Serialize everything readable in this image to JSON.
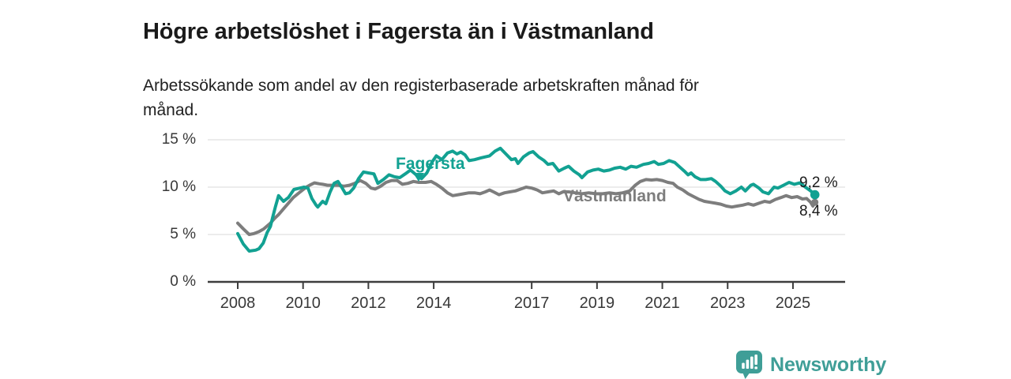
{
  "header": {
    "title": "Högre arbetslöshet i Fagersta än i Västmanland",
    "subtitle": "Arbetssökande som andel av den registerbaserade arbetskraften månad för månad."
  },
  "chart_data": {
    "type": "line",
    "title": "Högre arbetslöshet i Fagersta än i Västmanland",
    "unit": "%",
    "ylim": [
      0,
      15
    ],
    "x_range": [
      2008,
      2025.75
    ],
    "grid": "horizontal",
    "y_ticks": [
      {
        "value": 0,
        "label": "0 %"
      },
      {
        "value": 5,
        "label": "5 %"
      },
      {
        "value": 10,
        "label": "10 %"
      },
      {
        "value": 15,
        "label": "15 %"
      }
    ],
    "x_ticks": [
      {
        "value": 2008,
        "label": "2008"
      },
      {
        "value": 2010,
        "label": "2010"
      },
      {
        "value": 2012,
        "label": "2012"
      },
      {
        "value": 2014,
        "label": "2014"
      },
      {
        "value": 2017,
        "label": "2017"
      },
      {
        "value": 2019,
        "label": "2019"
      },
      {
        "value": 2021,
        "label": "2021"
      },
      {
        "value": 2023,
        "label": "2023"
      },
      {
        "value": 2025,
        "label": "2025"
      }
    ],
    "series": [
      {
        "name": "Fagersta",
        "label": "Fagersta",
        "color": "#12a192",
        "end_label": "9,2 %",
        "last_value": 9.2,
        "points": [
          [
            2008.0,
            5.1
          ],
          [
            2008.17,
            4.0
          ],
          [
            2008.35,
            3.25
          ],
          [
            2008.55,
            3.35
          ],
          [
            2008.65,
            3.5
          ],
          [
            2008.78,
            4.1
          ],
          [
            2008.9,
            5.2
          ],
          [
            2009.0,
            5.85
          ],
          [
            2009.07,
            6.8
          ],
          [
            2009.15,
            7.9
          ],
          [
            2009.25,
            9.1
          ],
          [
            2009.4,
            8.5
          ],
          [
            2009.55,
            8.9
          ],
          [
            2009.72,
            9.75
          ],
          [
            2009.9,
            9.9
          ],
          [
            2010.03,
            10.0
          ],
          [
            2010.15,
            9.9
          ],
          [
            2010.27,
            8.8
          ],
          [
            2010.4,
            8.1
          ],
          [
            2010.45,
            7.9
          ],
          [
            2010.6,
            8.5
          ],
          [
            2010.7,
            8.25
          ],
          [
            2010.83,
            9.5
          ],
          [
            2010.95,
            10.4
          ],
          [
            2011.07,
            10.6
          ],
          [
            2011.2,
            9.9
          ],
          [
            2011.3,
            9.3
          ],
          [
            2011.42,
            9.4
          ],
          [
            2011.55,
            9.9
          ],
          [
            2011.7,
            10.9
          ],
          [
            2011.85,
            11.6
          ],
          [
            2012.0,
            11.5
          ],
          [
            2012.17,
            11.4
          ],
          [
            2012.29,
            10.4
          ],
          [
            2012.46,
            10.8
          ],
          [
            2012.63,
            11.3
          ],
          [
            2012.79,
            11.1
          ],
          [
            2012.96,
            11.0
          ],
          [
            2013.13,
            11.4
          ],
          [
            2013.29,
            11.8
          ],
          [
            2013.46,
            11.3
          ],
          [
            2013.63,
            10.9
          ],
          [
            2013.79,
            11.5
          ],
          [
            2013.96,
            12.7
          ],
          [
            2014.08,
            13.3
          ],
          [
            2014.25,
            12.9
          ],
          [
            2014.42,
            13.6
          ],
          [
            2014.58,
            13.8
          ],
          [
            2014.71,
            13.5
          ],
          [
            2014.83,
            13.7
          ],
          [
            2014.96,
            13.4
          ],
          [
            2015.08,
            12.8
          ],
          [
            2015.25,
            12.9
          ],
          [
            2015.46,
            13.1
          ],
          [
            2015.71,
            13.3
          ],
          [
            2015.88,
            13.8
          ],
          [
            2016.04,
            14.1
          ],
          [
            2016.21,
            13.5
          ],
          [
            2016.38,
            12.9
          ],
          [
            2016.5,
            13.0
          ],
          [
            2016.58,
            12.5
          ],
          [
            2016.75,
            13.2
          ],
          [
            2016.92,
            13.6
          ],
          [
            2017.04,
            13.75
          ],
          [
            2017.21,
            13.2
          ],
          [
            2017.38,
            12.8
          ],
          [
            2017.5,
            12.4
          ],
          [
            2017.65,
            12.5
          ],
          [
            2017.83,
            11.7
          ],
          [
            2018.0,
            12.0
          ],
          [
            2018.13,
            12.2
          ],
          [
            2018.29,
            11.7
          ],
          [
            2018.46,
            11.3
          ],
          [
            2018.54,
            11.0
          ],
          [
            2018.71,
            11.6
          ],
          [
            2018.88,
            11.8
          ],
          [
            2019.04,
            11.9
          ],
          [
            2019.21,
            11.7
          ],
          [
            2019.38,
            11.8
          ],
          [
            2019.54,
            12.0
          ],
          [
            2019.71,
            12.1
          ],
          [
            2019.88,
            11.9
          ],
          [
            2020.04,
            12.2
          ],
          [
            2020.21,
            12.1
          ],
          [
            2020.42,
            12.4
          ],
          [
            2020.58,
            12.5
          ],
          [
            2020.75,
            12.7
          ],
          [
            2020.88,
            12.4
          ],
          [
            2021.04,
            12.5
          ],
          [
            2021.21,
            12.8
          ],
          [
            2021.38,
            12.6
          ],
          [
            2021.54,
            12.1
          ],
          [
            2021.67,
            11.7
          ],
          [
            2021.79,
            11.3
          ],
          [
            2021.88,
            11.5
          ],
          [
            2022.0,
            11.1
          ],
          [
            2022.17,
            10.8
          ],
          [
            2022.33,
            10.8
          ],
          [
            2022.5,
            10.9
          ],
          [
            2022.63,
            10.6
          ],
          [
            2022.79,
            10.1
          ],
          [
            2022.92,
            9.6
          ],
          [
            2023.08,
            9.3
          ],
          [
            2023.25,
            9.6
          ],
          [
            2023.42,
            10.0
          ],
          [
            2023.54,
            9.6
          ],
          [
            2023.71,
            10.2
          ],
          [
            2023.79,
            10.3
          ],
          [
            2023.96,
            9.9
          ],
          [
            2024.08,
            9.5
          ],
          [
            2024.25,
            9.3
          ],
          [
            2024.42,
            10.0
          ],
          [
            2024.54,
            9.9
          ],
          [
            2024.71,
            10.2
          ],
          [
            2024.88,
            10.5
          ],
          [
            2025.04,
            10.3
          ],
          [
            2025.21,
            10.45
          ],
          [
            2025.38,
            10.0
          ],
          [
            2025.54,
            9.6
          ],
          [
            2025.67,
            9.2
          ]
        ]
      },
      {
        "name": "Västmanland",
        "label": "Västmanland",
        "color": "#7d7d7d",
        "end_label": "8,4 %",
        "last_value": 8.4,
        "points": [
          [
            2008.0,
            6.2
          ],
          [
            2008.17,
            5.6
          ],
          [
            2008.35,
            5.0
          ],
          [
            2008.5,
            5.1
          ],
          [
            2008.65,
            5.3
          ],
          [
            2008.8,
            5.6
          ],
          [
            2009.0,
            6.2
          ],
          [
            2009.13,
            6.7
          ],
          [
            2009.25,
            7.1
          ],
          [
            2009.4,
            7.7
          ],
          [
            2009.5,
            8.1
          ],
          [
            2009.7,
            8.9
          ],
          [
            2009.95,
            9.6
          ],
          [
            2010.1,
            10.0
          ],
          [
            2010.2,
            10.2
          ],
          [
            2010.35,
            10.45
          ],
          [
            2010.5,
            10.35
          ],
          [
            2010.6,
            10.3
          ],
          [
            2010.75,
            10.2
          ],
          [
            2010.92,
            10.2
          ],
          [
            2011.08,
            10.2
          ],
          [
            2011.25,
            10.1
          ],
          [
            2011.42,
            10.2
          ],
          [
            2011.58,
            10.4
          ],
          [
            2011.75,
            10.7
          ],
          [
            2011.92,
            10.4
          ],
          [
            2012.08,
            9.9
          ],
          [
            2012.21,
            9.8
          ],
          [
            2012.38,
            10.1
          ],
          [
            2012.54,
            10.5
          ],
          [
            2012.71,
            10.7
          ],
          [
            2012.88,
            10.7
          ],
          [
            2013.04,
            10.3
          ],
          [
            2013.21,
            10.4
          ],
          [
            2013.38,
            10.6
          ],
          [
            2013.54,
            10.5
          ],
          [
            2013.75,
            10.5
          ],
          [
            2013.92,
            10.6
          ],
          [
            2014.08,
            10.3
          ],
          [
            2014.25,
            9.9
          ],
          [
            2014.42,
            9.4
          ],
          [
            2014.58,
            9.1
          ],
          [
            2014.75,
            9.2
          ],
          [
            2014.92,
            9.3
          ],
          [
            2015.08,
            9.4
          ],
          [
            2015.25,
            9.4
          ],
          [
            2015.42,
            9.3
          ],
          [
            2015.58,
            9.5
          ],
          [
            2015.71,
            9.7
          ],
          [
            2015.83,
            9.5
          ],
          [
            2016.0,
            9.2
          ],
          [
            2016.17,
            9.4
          ],
          [
            2016.33,
            9.5
          ],
          [
            2016.5,
            9.6
          ],
          [
            2016.67,
            9.8
          ],
          [
            2016.83,
            10.0
          ],
          [
            2017.0,
            9.9
          ],
          [
            2017.17,
            9.7
          ],
          [
            2017.33,
            9.4
          ],
          [
            2017.5,
            9.5
          ],
          [
            2017.67,
            9.6
          ],
          [
            2017.83,
            9.3
          ],
          [
            2017.96,
            9.5
          ],
          [
            2018.13,
            9.5
          ],
          [
            2018.33,
            9.4
          ],
          [
            2018.54,
            9.3
          ],
          [
            2018.75,
            9.4
          ],
          [
            2018.96,
            9.3
          ],
          [
            2019.17,
            9.3
          ],
          [
            2019.38,
            9.4
          ],
          [
            2019.58,
            9.3
          ],
          [
            2019.79,
            9.4
          ],
          [
            2020.0,
            9.6
          ],
          [
            2020.17,
            10.2
          ],
          [
            2020.33,
            10.6
          ],
          [
            2020.5,
            10.8
          ],
          [
            2020.67,
            10.75
          ],
          [
            2020.83,
            10.8
          ],
          [
            2021.0,
            10.7
          ],
          [
            2021.17,
            10.5
          ],
          [
            2021.33,
            10.4
          ],
          [
            2021.46,
            10.0
          ],
          [
            2021.63,
            9.7
          ],
          [
            2021.79,
            9.3
          ],
          [
            2021.96,
            9.0
          ],
          [
            2022.13,
            8.7
          ],
          [
            2022.29,
            8.5
          ],
          [
            2022.46,
            8.4
          ],
          [
            2022.63,
            8.3
          ],
          [
            2022.79,
            8.2
          ],
          [
            2022.96,
            8.0
          ],
          [
            2023.13,
            7.9
          ],
          [
            2023.29,
            8.0
          ],
          [
            2023.46,
            8.1
          ],
          [
            2023.63,
            8.25
          ],
          [
            2023.79,
            8.1
          ],
          [
            2023.96,
            8.3
          ],
          [
            2024.13,
            8.5
          ],
          [
            2024.29,
            8.4
          ],
          [
            2024.46,
            8.7
          ],
          [
            2024.63,
            8.9
          ],
          [
            2024.79,
            9.1
          ],
          [
            2024.96,
            8.9
          ],
          [
            2025.13,
            9.0
          ],
          [
            2025.29,
            8.75
          ],
          [
            2025.42,
            8.8
          ],
          [
            2025.54,
            8.4
          ],
          [
            2025.61,
            8.0
          ],
          [
            2025.67,
            8.4
          ]
        ]
      }
    ]
  },
  "footer": {
    "brand": "Newsworthy"
  },
  "colors": {
    "background": "#ffffff",
    "axis": "#3d3d3d",
    "gridline": "#d9d9d9",
    "tick_label": "#383838",
    "title_text": "#1a1a1a",
    "subtitle_text": "#212121",
    "fagersta": "#12a192",
    "vastmanland": "#7d7d7d",
    "logo_teal": "#3f9e97"
  }
}
